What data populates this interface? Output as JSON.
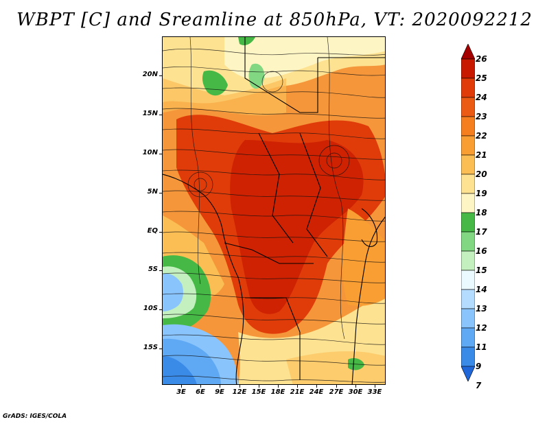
{
  "title": "WBPT [C] and Sreamline at 850hPa, VT: 2020092212",
  "footer": "GrADS: IGES/COLA",
  "map": {
    "lat_labels": [
      "20N",
      "15N",
      "10N",
      "5N",
      "EQ",
      "5S",
      "10S",
      "15S"
    ],
    "lon_labels": [
      "3E",
      "6E",
      "9E",
      "12E",
      "15E",
      "18E",
      "21E",
      "24E",
      "27E",
      "30E",
      "33E"
    ]
  },
  "colorbar": {
    "labels": [
      "26",
      "25",
      "24",
      "23",
      "22",
      "21",
      "20",
      "19",
      "18",
      "17",
      "16",
      "15",
      "14",
      "13",
      "12",
      "11",
      "9",
      "7"
    ],
    "colors": [
      "#a50000",
      "#c81a00",
      "#e03c0a",
      "#ec5b14",
      "#f57f1e",
      "#f99e32",
      "#fbbe55",
      "#fde291",
      "#fef5c5",
      "#46b846",
      "#82d882",
      "#c4f0c0",
      "#eafaff",
      "#b4dcff",
      "#8ac4fc",
      "#5ea8f4",
      "#3a8ae8",
      "#1f66d9"
    ]
  }
}
